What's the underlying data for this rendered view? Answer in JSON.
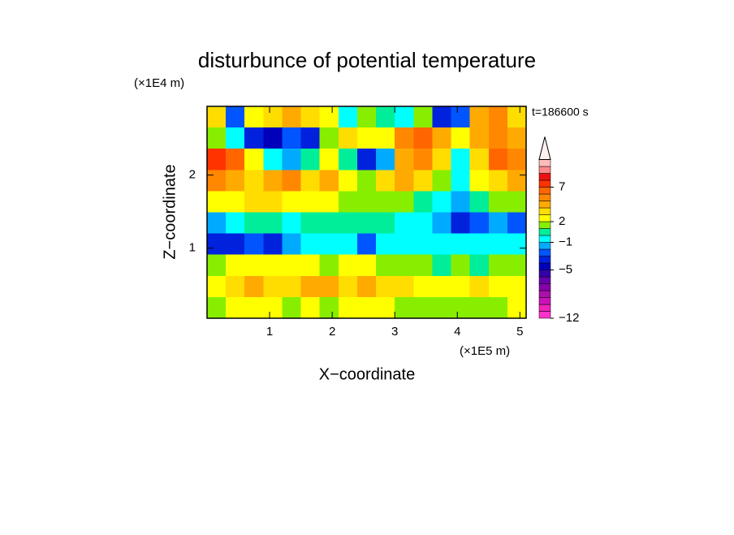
{
  "chart_data": {
    "type": "contour",
    "title": "disturbunce of potential temperature",
    "y_unit_label": "(×1E4 m)",
    "x_unit_label": "(×1E5 m)",
    "time_label": "t=186600 s",
    "xlabel": "X−coordinate",
    "ylabel": "Z−coordinate",
    "x": [
      0.15,
      0.45,
      0.75,
      1.05,
      1.35,
      1.65,
      1.95,
      2.25,
      2.55,
      2.85,
      3.15,
      3.45,
      3.75,
      4.05,
      4.35,
      4.65,
      4.95
    ],
    "y": [
      2.795,
      2.505,
      2.215,
      1.925,
      1.635,
      1.345,
      1.055,
      0.765,
      0.475,
      0.185
    ],
    "z": [
      [
        3,
        -3,
        2,
        3,
        4,
        3,
        2,
        -1,
        1,
        0,
        -1,
        1,
        -4,
        -3,
        4,
        5,
        3
      ],
      [
        1,
        -1,
        -4,
        -5,
        -3,
        -4,
        1,
        3,
        2,
        2,
        5,
        6,
        4,
        2,
        4,
        5,
        4
      ],
      [
        7,
        6,
        2,
        -1,
        -2,
        0,
        2,
        0,
        -4,
        -2,
        4,
        5,
        3,
        -1,
        3,
        6,
        5
      ],
      [
        5,
        4,
        3,
        4,
        5,
        3,
        4,
        2,
        1,
        3,
        4,
        3,
        1,
        -1,
        2,
        3,
        4
      ],
      [
        2,
        2,
        3,
        3,
        2,
        2,
        2,
        1,
        1,
        1,
        1,
        0,
        -1,
        -2,
        0,
        1,
        1
      ],
      [
        -2,
        -1,
        0,
        0,
        -1,
        0,
        0,
        0,
        0,
        0,
        -1,
        -1,
        -2,
        -4,
        -3,
        -2,
        -3
      ],
      [
        -4,
        -4,
        -3,
        -4,
        -2,
        -1,
        -1,
        -1,
        -3,
        -1,
        -1,
        -1,
        -1,
        -1,
        -1,
        -1,
        -1
      ],
      [
        1,
        2,
        2,
        2,
        2,
        2,
        1,
        2,
        2,
        1,
        1,
        1,
        0,
        1,
        0,
        1,
        1
      ],
      [
        2,
        3,
        4,
        3,
        3,
        4,
        4,
        3,
        4,
        3,
        3,
        2,
        2,
        2,
        3,
        2,
        2
      ],
      [
        1,
        2,
        2,
        2,
        1,
        2,
        1,
        2,
        2,
        2,
        1,
        1,
        1,
        1,
        1,
        1,
        2
      ]
    ],
    "xlim": [
      0,
      5.1
    ],
    "ylim": [
      0.04,
      2.94
    ],
    "xticks": [
      1,
      2,
      3,
      4,
      5
    ],
    "yticks": [
      1,
      2
    ],
    "colorbar": {
      "levels": [
        -12,
        -11,
        -10,
        -9,
        -8,
        -7,
        -6,
        -5,
        -4,
        -3,
        -2,
        -1,
        0,
        1,
        2,
        3,
        4,
        5,
        6,
        7,
        8,
        9,
        10,
        11
      ],
      "colors": [
        "#ff33cc",
        "#ee22bb",
        "#cc11bb",
        "#aa11aa",
        "#8800aa",
        "#6600aa",
        "#3300aa",
        "#0000bb",
        "#0022dd",
        "#0055ff",
        "#00aaff",
        "#00ffff",
        "#00ee99",
        "#88ee00",
        "#ffff00",
        "#ffdd00",
        "#ffaa00",
        "#ff8800",
        "#ff6600",
        "#ff3300",
        "#ee1111",
        "#ff8888",
        "#ffbbbb"
      ],
      "extend_color": "#fff0f0",
      "ticks": [
        {
          "value": -12,
          "label": "−12"
        },
        {
          "value": -5,
          "label": "−5"
        },
        {
          "value": -1,
          "label": "−1"
        },
        2,
        7
      ]
    }
  }
}
